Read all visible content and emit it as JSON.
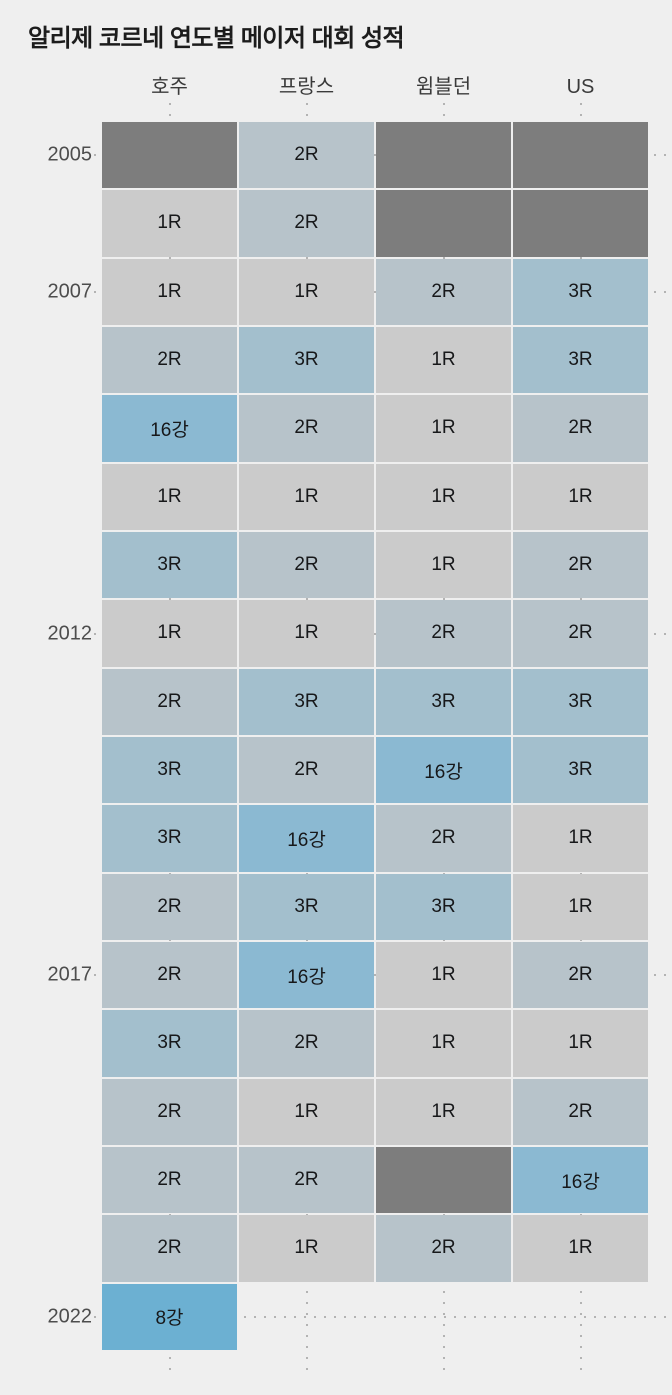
{
  "chart_data": {
    "type": "heatmap",
    "title": "알리제 코르네 연도별 메이저 대회 성적",
    "columns": [
      "호주",
      "프랑스",
      "윔블던",
      "US"
    ],
    "xlabel": "",
    "ylabel": "",
    "labeled_years": [
      2005,
      2007,
      2012,
      2017,
      2022
    ],
    "legend_position": "none",
    "grid": "dotted guides at column centers and labeled-year row centers",
    "no_data_key": "NA",
    "value_colors": {
      "NA": "#7d7d7d",
      "1R": "#cbcbcb",
      "2R": "#b7c3ca",
      "3R": "#a3bfcd",
      "16강": "#8bb9d2",
      "8강": "#6cb0d2"
    },
    "rows": [
      {
        "year": 2005,
        "values": [
          "NA",
          "2R",
          "NA",
          "NA"
        ]
      },
      {
        "year": 2006,
        "values": [
          "1R",
          "2R",
          "NA",
          "NA"
        ]
      },
      {
        "year": 2007,
        "values": [
          "1R",
          "1R",
          "2R",
          "3R"
        ]
      },
      {
        "year": 2008,
        "values": [
          "2R",
          "3R",
          "1R",
          "3R"
        ]
      },
      {
        "year": 2009,
        "values": [
          "16강",
          "2R",
          "1R",
          "2R"
        ]
      },
      {
        "year": 2010,
        "values": [
          "1R",
          "1R",
          "1R",
          "1R"
        ]
      },
      {
        "year": 2011,
        "values": [
          "3R",
          "2R",
          "1R",
          "2R"
        ]
      },
      {
        "year": 2012,
        "values": [
          "1R",
          "1R",
          "2R",
          "2R"
        ]
      },
      {
        "year": 2013,
        "values": [
          "2R",
          "3R",
          "3R",
          "3R"
        ]
      },
      {
        "year": 2014,
        "values": [
          "3R",
          "2R",
          "16강",
          "3R"
        ]
      },
      {
        "year": 2015,
        "values": [
          "3R",
          "16강",
          "2R",
          "1R"
        ]
      },
      {
        "year": 2016,
        "values": [
          "2R",
          "3R",
          "3R",
          "1R"
        ]
      },
      {
        "year": 2017,
        "values": [
          "2R",
          "16강",
          "1R",
          "2R"
        ]
      },
      {
        "year": 2018,
        "values": [
          "3R",
          "2R",
          "1R",
          "1R"
        ]
      },
      {
        "year": 2019,
        "values": [
          "2R",
          "1R",
          "1R",
          "2R"
        ]
      },
      {
        "year": 2020,
        "values": [
          "2R",
          "2R",
          "NA",
          "16강"
        ]
      },
      {
        "year": 2021,
        "values": [
          "2R",
          "1R",
          "2R",
          "1R"
        ]
      },
      {
        "year": 2022,
        "values": [
          "8강",
          null,
          null,
          null
        ]
      }
    ]
  },
  "colors": {
    "background": "#efefef",
    "title_text": "#1c1c1c",
    "header_text": "#3a3a3a",
    "year_text": "#4d4d4d",
    "cell_text": "#17181a",
    "no_data_cell": "#7d7d7d",
    "grid_dot": "#b3b3b3"
  }
}
